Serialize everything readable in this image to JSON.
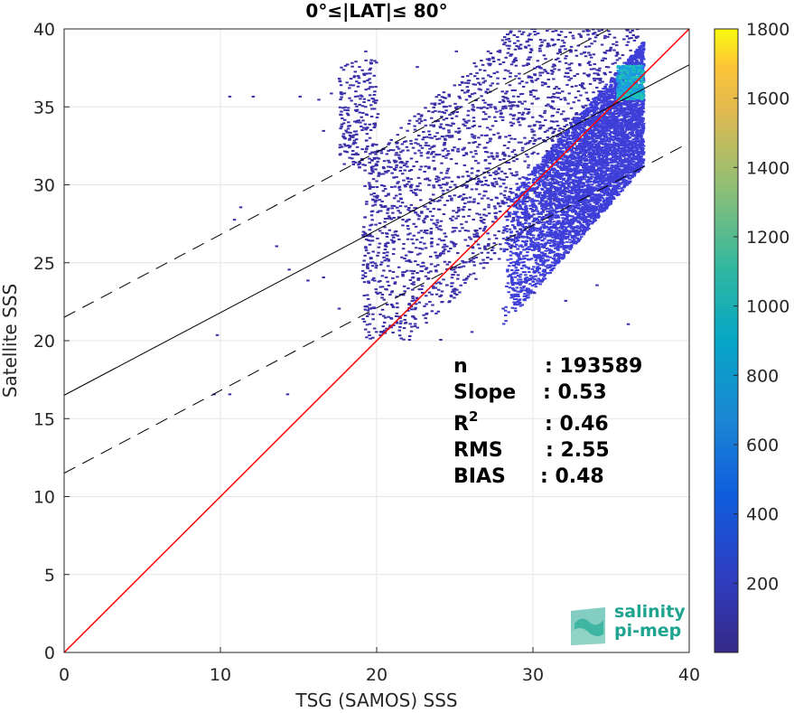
{
  "chart_data": {
    "type": "heatmap",
    "title": "0°≤|LAT|≤ 80°",
    "xlabel": "TSG (SAMOS) SSS",
    "ylabel": "Satellite SSS",
    "xlim": [
      0,
      40
    ],
    "ylim": [
      0,
      40
    ],
    "xticks": [
      0,
      10,
      20,
      30,
      40
    ],
    "yticks": [
      0,
      5,
      10,
      15,
      20,
      25,
      30,
      35,
      40
    ],
    "grid": true,
    "colorbar": {
      "range": [
        0,
        1800
      ],
      "ticks": [
        200,
        400,
        600,
        800,
        1000,
        1200,
        1400,
        1600,
        1800
      ],
      "colormap": "parula"
    },
    "lines": [
      {
        "kind": "one-to-one",
        "color": "#ff0000",
        "style": "solid",
        "slope": 1.0,
        "intercept": 0.0
      },
      {
        "kind": "fit",
        "color": "#000000",
        "style": "solid",
        "slope": 0.53,
        "intercept": 16.5
      },
      {
        "kind": "fit-plus-band",
        "color": "#000000",
        "style": "dashed",
        "slope": 0.53,
        "intercept": 21.5
      },
      {
        "kind": "fit-minus-band",
        "color": "#000000",
        "style": "dashed",
        "slope": 0.53,
        "intercept": 11.5
      }
    ],
    "density_regions": [
      {
        "x": [
          30,
          37
        ],
        "y": [
          25,
          38
        ],
        "level": 300
      },
      {
        "x": [
          33,
          37
        ],
        "y": [
          33,
          37.5
        ],
        "level": 500
      },
      {
        "x": [
          35.5,
          37
        ],
        "y": [
          35,
          37.5
        ],
        "level": 1000
      }
    ],
    "stats": [
      {
        "label": "n",
        "value": ": 193589"
      },
      {
        "label": "Slope",
        "value": ": 0.53"
      },
      {
        "label": "R",
        "superscript": "2",
        "value": ": 0.46"
      },
      {
        "label": "RMS",
        "value": ": 2.55"
      },
      {
        "label": "BIAS",
        "value": ": 0.48"
      }
    ]
  },
  "logo": {
    "line1": "salinity",
    "line2": "pi-mep"
  },
  "colors": {
    "one_to_one": "#ff0000",
    "fit": "#000000",
    "grid": "#e6e6e6",
    "axis": "#262626",
    "logo": "#1fa48f"
  }
}
